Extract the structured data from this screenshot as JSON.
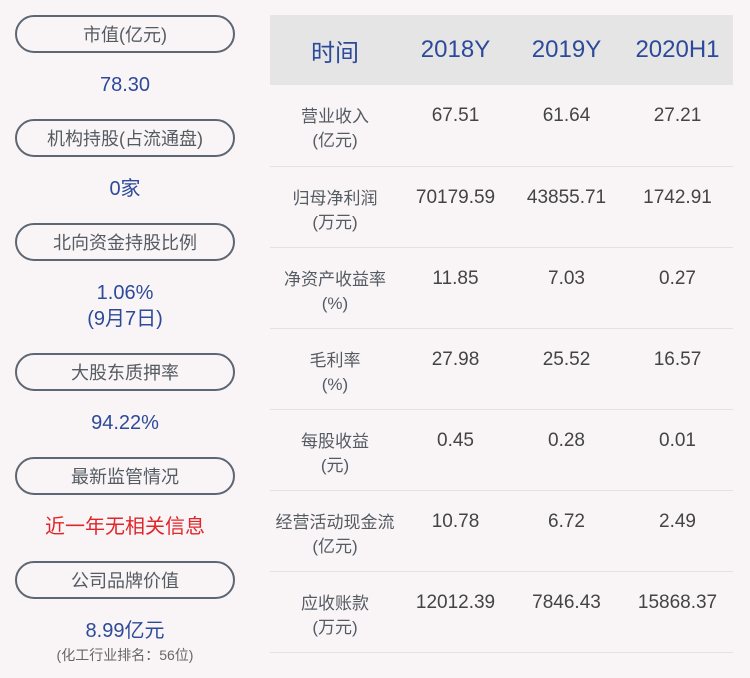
{
  "left": [
    {
      "label": "市值(亿元)",
      "value": "78.30"
    },
    {
      "label": "机构持股(占流通盘)",
      "value": "0家"
    },
    {
      "label": "北向资金持股比例",
      "value": "1.06%",
      "value2": "(9月7日)"
    },
    {
      "label": "大股东质押率",
      "value": "94.22%"
    },
    {
      "label": "最新监管情况",
      "value": "近一年无相关信息"
    },
    {
      "label": "公司品牌价值",
      "value": "8.99亿元",
      "note": "(化工行业排名：56位)"
    }
  ],
  "table": {
    "headers": [
      "时间",
      "2018Y",
      "2019Y",
      "2020H1"
    ],
    "rows": [
      {
        "label": "营业收入",
        "unit": "(亿元)",
        "values": [
          "67.51",
          "61.64",
          "27.21"
        ]
      },
      {
        "label": "归母净利润",
        "unit": "(万元)",
        "values": [
          "70179.59",
          "43855.71",
          "1742.91"
        ]
      },
      {
        "label": "净资产收益率",
        "unit": "(%)",
        "values": [
          "11.85",
          "7.03",
          "0.27"
        ]
      },
      {
        "label": "毛利率",
        "unit": "(%)",
        "values": [
          "27.98",
          "25.52",
          "16.57"
        ]
      },
      {
        "label": "每股收益",
        "unit": "(元)",
        "values": [
          "0.45",
          "0.28",
          "0.01"
        ]
      },
      {
        "label": "经营活动现金流",
        "unit": "(亿元)",
        "values": [
          "10.78",
          "6.72",
          "2.49"
        ]
      },
      {
        "label": "应收账款",
        "unit": "(万元)",
        "values": [
          "12012.39",
          "7846.43",
          "15868.37"
        ]
      }
    ]
  },
  "colors": {
    "accent": "#2d4a9a",
    "alert": "#e0252b",
    "header_bg": "#e5e5e5"
  }
}
